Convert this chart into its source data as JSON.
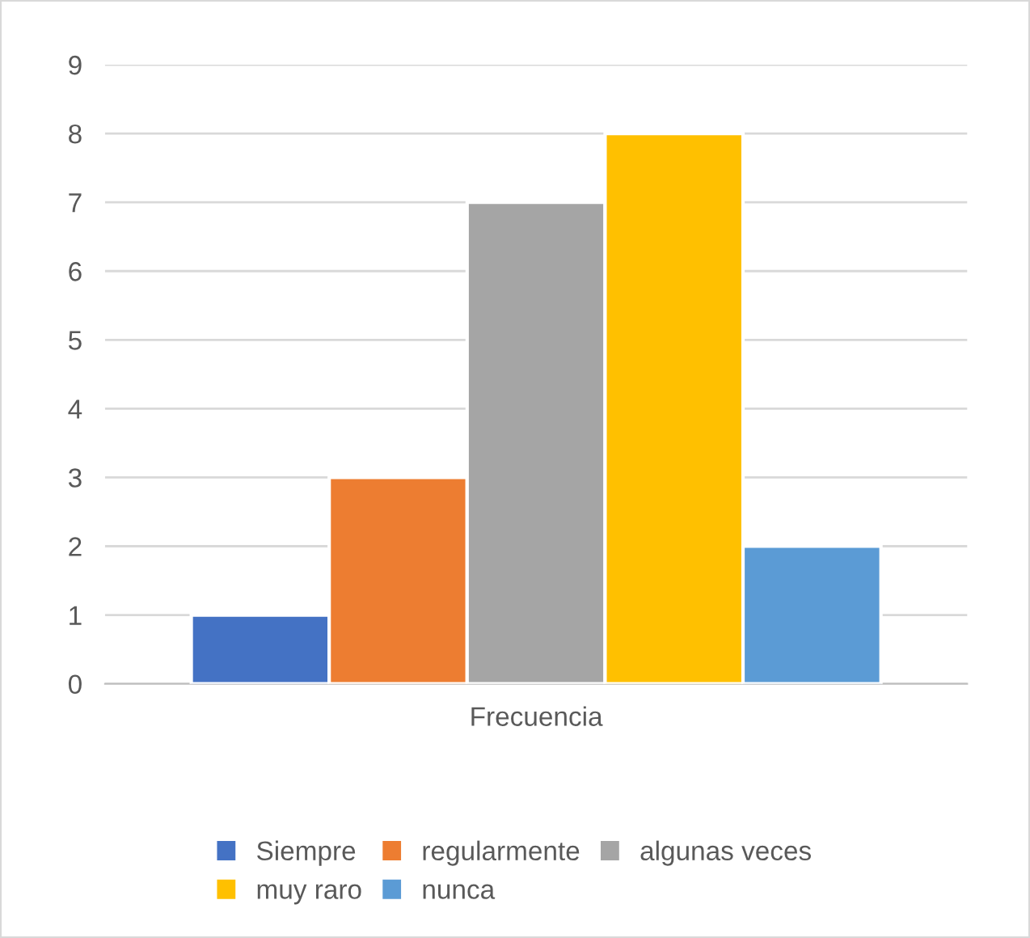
{
  "chart_data": {
    "type": "bar",
    "categories": [
      "Frecuencia"
    ],
    "series": [
      {
        "name": "Siempre",
        "color": "#4472c4",
        "values": [
          1
        ]
      },
      {
        "name": "regularmente",
        "color": "#ed7d31",
        "values": [
          3
        ]
      },
      {
        "name": "algunas veces",
        "color": "#a5a5a5",
        "values": [
          7
        ]
      },
      {
        "name": "muy raro",
        "color": "#ffc000",
        "values": [
          8
        ]
      },
      {
        "name": "nunca",
        "color": "#5b9bd5",
        "values": [
          2
        ]
      }
    ],
    "ylim": [
      0,
      9
    ],
    "yticks": [
      0,
      1,
      2,
      3,
      4,
      5,
      6,
      7,
      8,
      9
    ],
    "grid": "y",
    "legend": "bottom"
  }
}
